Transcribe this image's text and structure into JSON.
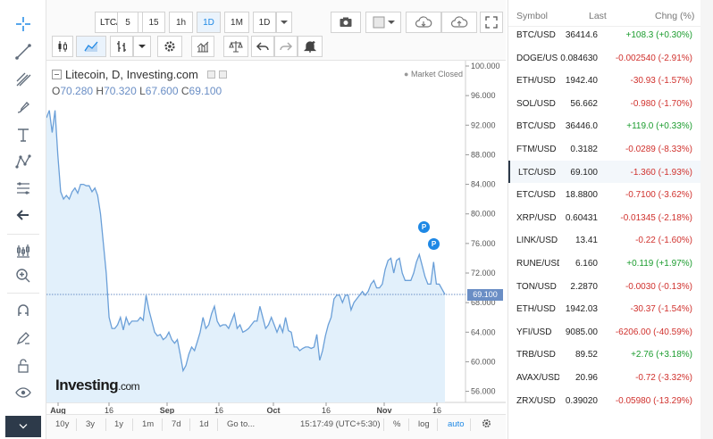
{
  "toolbar": {
    "symbol": "LTC/USD",
    "intervals": [
      "5",
      "15",
      "1h",
      "1D",
      "1M",
      "1D"
    ],
    "active_interval_index": 3
  },
  "legend": {
    "title": "Litecoin, D, Investing.com",
    "open_label": "O",
    "open": "70.280",
    "high_label": "H",
    "high": "70.320",
    "low_label": "L",
    "low": "67.600",
    "close_label": "C",
    "close": "69.100",
    "market_status": "Market Closed"
  },
  "watermark": {
    "name": "Investing",
    "suffix": ".com"
  },
  "last_price_tag": "69.100",
  "markers": [
    "P",
    "P"
  ],
  "chart_data": {
    "type": "area",
    "series": [
      {
        "values": [
          93,
          94,
          91,
          94,
          88,
          83,
          82,
          82.5,
          82,
          83,
          83.5,
          82.8,
          84,
          84,
          83.8,
          83.8,
          83,
          83.5,
          82.5,
          80,
          76,
          72,
          66,
          64.5,
          64.5,
          65,
          66,
          64.3,
          66,
          65,
          65.5,
          65.5,
          65.5,
          66,
          65.6,
          69,
          67,
          65.5,
          64,
          63.5,
          63.7,
          63,
          63.3,
          64,
          63,
          62.5,
          63,
          61,
          58.8,
          59.5,
          61,
          62,
          61.5,
          62.7,
          64,
          66,
          64.5,
          65,
          66.5,
          67.5,
          65.5,
          64.8,
          65,
          65,
          64.5,
          65.5,
          66.5,
          64.5,
          65,
          64,
          64.2,
          64.5,
          65,
          65.5,
          65.5,
          67.5,
          66,
          64.5,
          65,
          66,
          65,
          64,
          65,
          64,
          66,
          64.2,
          64,
          62,
          62,
          61.5,
          61.8,
          62,
          62,
          61.8,
          62,
          63.7,
          60.2,
          61.5,
          63.5,
          65,
          66,
          68.5,
          69,
          69,
          68,
          69,
          69,
          67,
          68,
          68.5,
          69,
          69.5,
          69,
          69.5,
          70.5,
          71,
          70,
          70,
          70.5,
          72.5,
          73.7,
          74,
          72,
          73.7,
          74,
          72,
          71,
          71,
          71,
          72,
          73.5,
          74.5,
          73,
          71.5,
          70.5,
          70.5,
          73.5,
          70.5,
          70.5,
          69.8,
          69.1
        ],
        "color": "#6a9fd8"
      }
    ],
    "xticks": [
      "Aug",
      "16",
      "Sep",
      "16",
      "Oct",
      "16",
      "Nov",
      "16"
    ],
    "yticks": [
      "100.000",
      "96.000",
      "92.000",
      "88.000",
      "84.000",
      "80.000",
      "76.000",
      "72.000",
      "68.000",
      "64.000",
      "60.000",
      "56.000"
    ],
    "ylim": [
      54.5,
      100
    ],
    "last_value": 69.1,
    "grid": false
  },
  "bottom": {
    "ranges": [
      "10y",
      "3y",
      "1y",
      "1m",
      "7d",
      "1d"
    ],
    "goto": "Go to...",
    "time": "15:17:49 (UTC+5:30)",
    "percent": "%",
    "log": "log",
    "auto": "auto"
  },
  "watchlist": {
    "headers": {
      "symbol": "Symbol",
      "last": "Last",
      "change": "Chng (%)"
    },
    "rows": [
      {
        "symbol": "BTC/USD",
        "last": "36414.6",
        "change": "+108.3 (+0.30%)",
        "dir": "up"
      },
      {
        "symbol": "DOGE/US",
        "last": "0.084630",
        "change": "-0.002540 (-2.91%)",
        "dir": "down"
      },
      {
        "symbol": "ETH/USD",
        "last": "1942.40",
        "change": "-30.93 (-1.57%)",
        "dir": "down"
      },
      {
        "symbol": "SOL/USD",
        "last": "56.662",
        "change": "-0.980 (-1.70%)",
        "dir": "down"
      },
      {
        "symbol": "BTC/USD",
        "last": "36446.0",
        "change": "+119.0 (+0.33%)",
        "dir": "up"
      },
      {
        "symbol": "FTM/USD",
        "last": "0.3182",
        "change": "-0.0289 (-8.33%)",
        "dir": "down"
      },
      {
        "symbol": "LTC/USD",
        "last": "69.100",
        "change": "-1.360 (-1.93%)",
        "dir": "down",
        "selected": true
      },
      {
        "symbol": "ETC/USD",
        "last": "18.8800",
        "change": "-0.7100 (-3.62%)",
        "dir": "down"
      },
      {
        "symbol": "XRP/USD",
        "last": "0.60431",
        "change": "-0.01345 (-2.18%)",
        "dir": "down"
      },
      {
        "symbol": "LINK/USD",
        "last": "13.41",
        "change": "-0.22 (-1.60%)",
        "dir": "down"
      },
      {
        "symbol": "RUNE/USD",
        "last": "6.160",
        "change": "+0.119 (+1.97%)",
        "dir": "up"
      },
      {
        "symbol": "TON/USD",
        "last": "2.2870",
        "change": "-0.0030 (-0.13%)",
        "dir": "down"
      },
      {
        "symbol": "ETH/USD",
        "last": "1942.03",
        "change": "-30.37 (-1.54%)",
        "dir": "down"
      },
      {
        "symbol": "YFI/USD",
        "last": "9085.00",
        "change": "-6206.00 (-40.59%)",
        "dir": "down"
      },
      {
        "symbol": "TRB/USD",
        "last": "89.52",
        "change": "+2.76 (+3.18%)",
        "dir": "up"
      },
      {
        "symbol": "AVAX/USD",
        "last": "20.96",
        "change": "-0.72 (-3.32%)",
        "dir": "down"
      },
      {
        "symbol": "ZRX/USD",
        "last": "0.39020",
        "change": "-0.05980 (-13.29%)",
        "dir": "down"
      }
    ]
  }
}
